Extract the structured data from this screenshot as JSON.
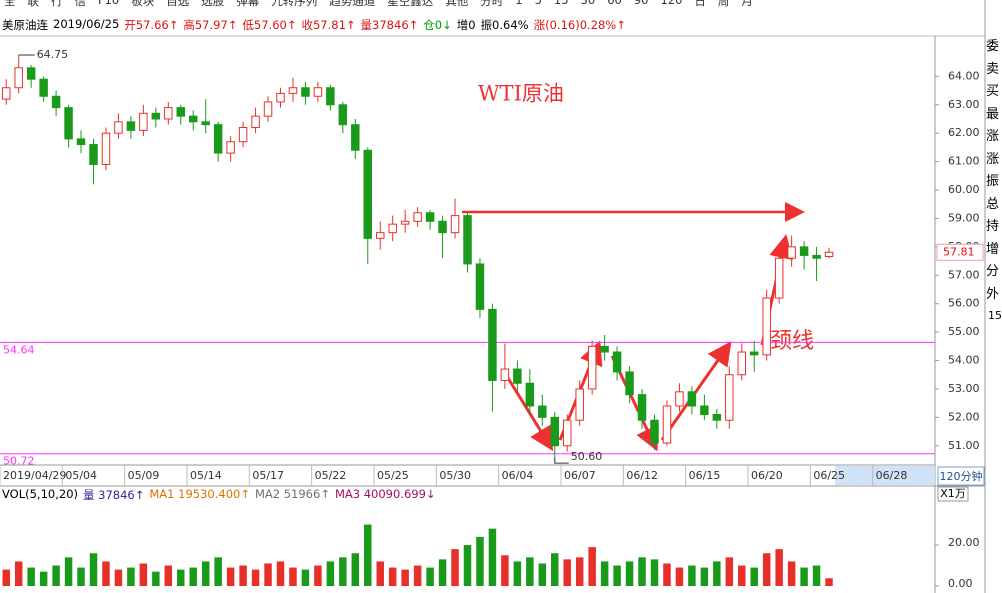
{
  "toolbar": [
    "全",
    "联",
    "行",
    "信",
    "F10",
    "板块",
    "自选",
    "选股",
    "弹幕",
    "九转序列",
    "趋势通道",
    "星空鑫达",
    "其他",
    "分时",
    "1",
    "5",
    "15",
    "30",
    "60",
    "90",
    "120",
    "日",
    "周",
    "月"
  ],
  "header": [
    {
      "text": "美原油连",
      "color": "#000000"
    },
    {
      "text": "2019/06/25",
      "color": "#000000"
    },
    {
      "text": "开57.66↑",
      "color": "#e01010"
    },
    {
      "text": "高57.97↑",
      "color": "#e01010"
    },
    {
      "text": "低57.60↑",
      "color": "#e01010"
    },
    {
      "text": "收57.81↑",
      "color": "#e01010"
    },
    {
      "text": "量37846↑",
      "color": "#e01010"
    },
    {
      "text": "仓0↓",
      "color": "#00a000"
    },
    {
      "text": "增0",
      "color": "#000000"
    },
    {
      "text": "振0.64%",
      "color": "#000000"
    },
    {
      "text": "涨(0.16)0.28%↑",
      "color": "#e01010"
    }
  ],
  "right_panel": [
    "委",
    "卖",
    "买",
    "最",
    "涨",
    "涨",
    "振",
    "总",
    "持",
    "增",
    "分",
    "外"
  ],
  "right_panel_value": "15",
  "chart_data": {
    "type": "candlestick",
    "period": "120分钟",
    "up_color": "#e8302a",
    "down_color": "#1a9a1a",
    "categories": [
      "2019/04/29",
      null,
      null,
      null,
      null,
      "05/04",
      null,
      null,
      null,
      null,
      "05/09",
      null,
      null,
      null,
      null,
      "05/14",
      null,
      null,
      null,
      null,
      "05/17",
      null,
      null,
      null,
      null,
      "05/22",
      null,
      null,
      null,
      null,
      "05/25",
      null,
      null,
      null,
      null,
      "05/30",
      null,
      null,
      null,
      null,
      "06/04",
      null,
      null,
      null,
      null,
      "06/07",
      null,
      null,
      null,
      null,
      "06/12",
      null,
      null,
      null,
      null,
      "06/15",
      null,
      null,
      null,
      null,
      "06/20",
      null,
      null,
      null,
      null,
      "06/25",
      null,
      null,
      null,
      null,
      "06/28",
      null,
      null,
      null,
      null
    ],
    "open": [
      63.2,
      63.6,
      64.3,
      63.9,
      63.3,
      62.9,
      61.8,
      61.6,
      60.9,
      62.0,
      62.4,
      62.1,
      62.7,
      62.5,
      62.9,
      62.6,
      62.4,
      62.3,
      61.3,
      61.7,
      62.2,
      62.6,
      63.1,
      63.4,
      63.6,
      63.3,
      63.6,
      63.0,
      62.3,
      61.4,
      58.3,
      58.5,
      58.8,
      58.9,
      59.2,
      58.9,
      58.5,
      59.1,
      57.4,
      55.8,
      53.3,
      53.7,
      53.2,
      52.4,
      52.0,
      51.0,
      51.9,
      53.0,
      54.5,
      54.3,
      53.6,
      52.8,
      51.9,
      51.1,
      52.4,
      52.9,
      52.4,
      52.1,
      51.9,
      53.5,
      54.3,
      54.2,
      56.2,
      57.6,
      58.0,
      57.7,
      57.66,
      null,
      null,
      null,
      null,
      null,
      null,
      null,
      null
    ],
    "high": [
      63.9,
      64.75,
      64.4,
      64.0,
      63.5,
      63.0,
      62.1,
      61.8,
      62.2,
      62.7,
      62.6,
      63.0,
      62.9,
      63.1,
      63.0,
      62.8,
      63.2,
      62.4,
      61.9,
      62.4,
      62.9,
      63.3,
      63.6,
      63.95,
      63.8,
      63.8,
      63.7,
      63.1,
      62.5,
      61.5,
      58.9,
      59.1,
      59.3,
      59.4,
      59.3,
      59.1,
      59.7,
      59.2,
      57.6,
      56.0,
      54.6,
      54.0,
      53.7,
      52.8,
      52.2,
      52.1,
      53.3,
      54.7,
      54.9,
      54.5,
      53.8,
      53.0,
      52.1,
      52.6,
      53.2,
      53.1,
      52.8,
      52.3,
      53.8,
      54.6,
      54.7,
      56.5,
      57.9,
      58.4,
      58.2,
      58.0,
      57.97,
      null,
      null,
      null,
      null,
      null,
      null,
      null,
      null
    ],
    "low": [
      63.0,
      63.4,
      63.6,
      63.1,
      62.6,
      61.5,
      61.3,
      60.2,
      60.7,
      61.8,
      61.8,
      61.9,
      62.2,
      62.3,
      62.3,
      62.1,
      62.0,
      61.0,
      61.0,
      61.5,
      62.0,
      62.4,
      62.9,
      63.1,
      63.0,
      63.1,
      62.8,
      62.0,
      61.1,
      57.4,
      57.9,
      58.2,
      58.5,
      58.7,
      58.6,
      57.6,
      58.3,
      57.1,
      55.5,
      52.2,
      53.0,
      52.9,
      52.1,
      51.7,
      50.6,
      50.8,
      51.7,
      52.8,
      54.0,
      53.3,
      52.5,
      51.6,
      50.85,
      51.0,
      52.2,
      52.1,
      51.9,
      51.6,
      51.6,
      53.3,
      53.6,
      54.0,
      56.0,
      57.3,
      57.2,
      56.8,
      57.6,
      null,
      null,
      null,
      null,
      null,
      null,
      null,
      null
    ],
    "close": [
      63.6,
      64.3,
      63.9,
      63.3,
      62.9,
      61.8,
      61.6,
      60.9,
      62.0,
      62.4,
      62.1,
      62.7,
      62.5,
      62.9,
      62.6,
      62.4,
      62.3,
      61.3,
      61.7,
      62.2,
      62.6,
      63.1,
      63.4,
      63.6,
      63.3,
      63.6,
      63.0,
      62.3,
      61.4,
      58.3,
      58.5,
      58.8,
      58.9,
      59.2,
      58.9,
      58.5,
      59.1,
      57.4,
      55.8,
      53.3,
      53.7,
      53.2,
      52.4,
      52.0,
      51.0,
      51.9,
      53.0,
      54.5,
      54.3,
      53.6,
      52.8,
      51.9,
      51.1,
      52.4,
      52.9,
      52.4,
      52.1,
      51.9,
      53.5,
      54.3,
      54.2,
      56.2,
      57.6,
      58.0,
      57.7,
      57.6,
      57.81,
      null,
      null,
      null,
      null,
      null,
      null,
      null,
      null
    ],
    "ylim": [
      50.5,
      65.35
    ],
    "yticks": [
      {
        "value": 51,
        "label": "51.00"
      },
      {
        "value": 52,
        "label": "52.00"
      },
      {
        "value": 53,
        "label": "53.00"
      },
      {
        "value": 54,
        "label": "54.00"
      },
      {
        "value": 55,
        "label": "55.00"
      },
      {
        "value": 56,
        "label": "56.00"
      },
      {
        "value": 57,
        "label": "57.00"
      },
      {
        "value": 58,
        "label": "58.00"
      },
      {
        "value": 59,
        "label": "59.00"
      },
      {
        "value": 60,
        "label": "60.00"
      },
      {
        "value": 61,
        "label": "61.00"
      },
      {
        "value": 62,
        "label": "62.00"
      },
      {
        "value": 63,
        "label": "63.00"
      },
      {
        "value": 64,
        "label": "64.00"
      }
    ],
    "hlines": [
      54.64,
      50.72
    ],
    "hline_color": "#ff33ff",
    "high_marker": 64.75,
    "low_marker": {
      "value": 50.6,
      "label": "50.60"
    },
    "annotations": [
      "WTI原油",
      "颈线"
    ],
    "volume": {
      "unit": "X1万",
      "legend": [
        {
          "text": "VOL(5,10,20)",
          "color": "#000000"
        },
        {
          "text": "量 37846↑",
          "color": "#2a2aa0"
        },
        {
          "text": "MA1 19530.400↑",
          "color": "#e07000"
        },
        {
          "text": "MA2 51966↑",
          "color": "#707070"
        },
        {
          "text": "MA3 40090.699↓",
          "color": "#a01060"
        }
      ],
      "values": [
        8,
        12,
        9,
        7,
        10,
        14,
        9,
        16,
        12,
        8,
        9,
        11,
        7,
        10,
        8,
        9,
        12,
        14,
        9,
        10,
        8,
        11,
        12,
        9,
        8,
        10,
        12,
        14,
        16,
        30,
        12,
        9,
        8,
        10,
        9,
        13,
        18,
        20,
        24,
        28,
        15,
        12,
        14,
        11,
        16,
        13,
        14,
        19,
        12,
        10,
        12,
        14,
        13,
        11,
        9,
        10,
        9,
        12,
        14,
        10,
        9,
        16,
        18,
        12,
        9,
        10,
        3.78,
        null,
        null,
        null,
        null,
        null,
        null,
        null,
        null
      ],
      "ylim": [
        0,
        42
      ],
      "yticks": [
        {
          "value": 0,
          "label": "0.00"
        },
        {
          "value": 20,
          "label": "20.00"
        }
      ]
    }
  }
}
